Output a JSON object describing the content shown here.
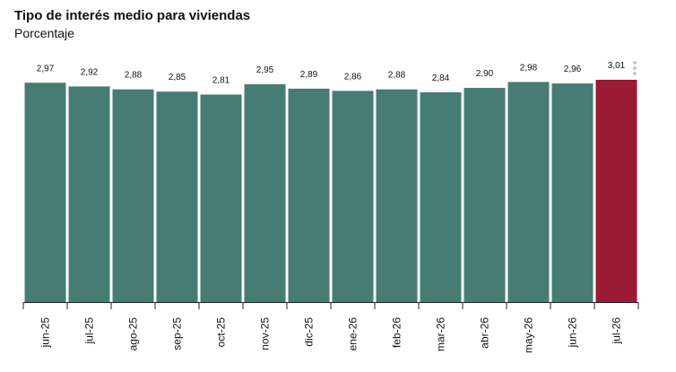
{
  "header": {
    "title": "Tipo de interés medio para viviendas",
    "subtitle": "Porcentaje"
  },
  "colors": {
    "bar": "#467c74",
    "highlight": "#9b1a34",
    "axis": "#222222"
  },
  "chart_data": {
    "type": "bar",
    "title": "Tipo de interés medio para viviendas",
    "subtitle": "Porcentaje",
    "categories": [
      "jun-25",
      "jul-25",
      "ago-25",
      "sep-25",
      "oct-25",
      "nov-25",
      "dic-25",
      "ene-26",
      "feb-26",
      "mar-26",
      "abr-26",
      "may-26",
      "jun-26",
      "jul-26"
    ],
    "values": [
      2.97,
      2.92,
      2.88,
      2.85,
      2.81,
      2.95,
      2.89,
      2.86,
      2.88,
      2.84,
      2.9,
      2.98,
      2.96,
      3.01
    ],
    "value_labels": [
      "2,97",
      "2,92",
      "2,88",
      "2,85",
      "2,81",
      "2,95",
      "2,89",
      "2,86",
      "2,88",
      "2,84",
      "2,90",
      "2,98",
      "2,96",
      "3,01"
    ],
    "highlight_index": 13,
    "ylim": [
      0,
      3.01
    ],
    "grid": false,
    "legend": "none"
  }
}
